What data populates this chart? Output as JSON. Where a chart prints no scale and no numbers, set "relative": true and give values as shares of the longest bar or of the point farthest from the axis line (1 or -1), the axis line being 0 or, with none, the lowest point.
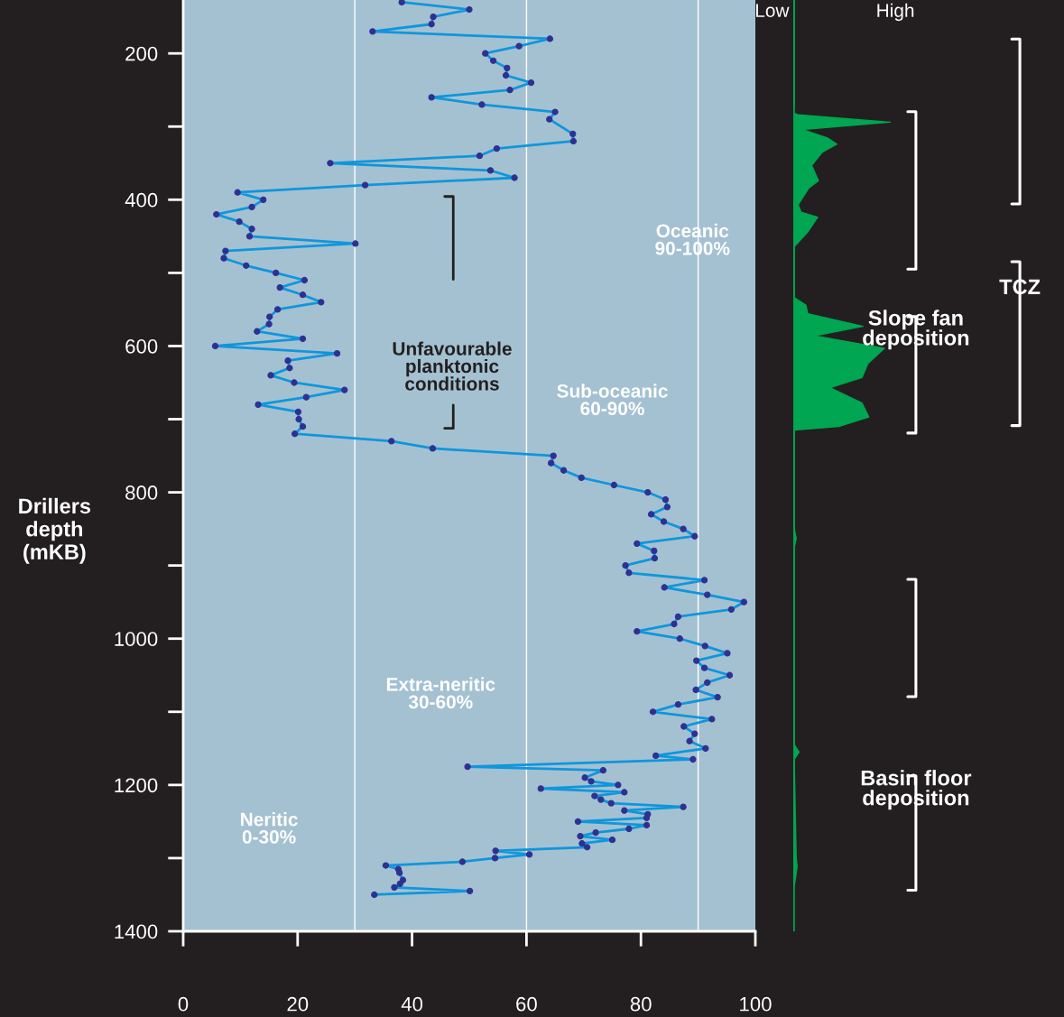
{
  "chart_data": [
    {
      "type": "line",
      "orientation": "horizontal",
      "ylabel": "Drillers\ndepth\n(mKB)",
      "marker": "circle",
      "line_style": "solid",
      "grid": false,
      "legend": false,
      "x": [
        130,
        140,
        150,
        160,
        170,
        180,
        190,
        200,
        210,
        220,
        230,
        240,
        250,
        260,
        270,
        280,
        290,
        310,
        320,
        330,
        340,
        350,
        360,
        370,
        380,
        390,
        400,
        410,
        420,
        430,
        440,
        450,
        460,
        470,
        480,
        490,
        500,
        510,
        520,
        530,
        540,
        550,
        560,
        570,
        580,
        590,
        600,
        610,
        620,
        630,
        640,
        650,
        660,
        670,
        680,
        690,
        700,
        710,
        720,
        730,
        740,
        750,
        760,
        770,
        780,
        790,
        800,
        810,
        820,
        830,
        840,
        850,
        860,
        870,
        880,
        890,
        900,
        910,
        920,
        930,
        940,
        950,
        960,
        970,
        980,
        990,
        1000,
        1010,
        1020,
        1030,
        1040,
        1050,
        1060,
        1070,
        1080,
        1090,
        1100,
        1110,
        1120,
        1130,
        1140,
        1150,
        1160,
        1165,
        1175,
        1180,
        1190,
        1195,
        1200,
        1205,
        1210,
        1215,
        1220,
        1225,
        1230,
        1235,
        1240,
        1245,
        1250,
        1255,
        1260,
        1265,
        1270,
        1275,
        1280,
        1285,
        1290,
        1295,
        1300,
        1305,
        1310,
        1315,
        1320,
        1330,
        1335,
        1340,
        1345,
        1350
      ],
      "series": [
        {
          "color": "#0f96dc",
          "values": [
            38.2,
            50.0,
            43.7,
            43.4,
            33.1,
            64.1,
            58.7,
            52.8,
            54.2,
            56.6,
            56.4,
            60.8,
            57.1,
            43.4,
            52.2,
            65.0,
            64.0,
            68.1,
            68.2,
            54.8,
            51.8,
            25.7,
            53.7,
            57.9,
            31.8,
            9.5,
            14.0,
            12.0,
            5.8,
            9.8,
            12.0,
            11.6,
            30.1,
            7.4,
            7.1,
            11.0,
            16.2,
            21.2,
            16.9,
            20.9,
            24.1,
            16.5,
            15.1,
            15.0,
            12.9,
            20.9,
            5.6,
            26.9,
            18.3,
            18.6,
            15.3,
            19.4,
            28.2,
            21.5,
            13.1,
            20.1,
            20.2,
            20.9,
            19.5,
            36.4,
            43.6,
            64.7,
            64.3,
            66.5,
            69.6,
            75.3,
            81.2,
            84.3,
            84.6,
            81.8,
            84.0,
            87.4,
            89.4,
            79.3,
            82.3,
            82.4,
            77.3,
            77.9,
            91.1,
            84.1,
            91.6,
            98.0,
            95.8,
            86.5,
            85.8,
            79.3,
            86.8,
            91.2,
            95.1,
            89.7,
            91.1,
            95.5,
            91.6,
            89.6,
            93.4,
            86.5,
            82.1,
            92.4,
            87.5,
            89.4,
            88.5,
            91.3,
            82.6,
            89.1,
            49.7,
            73.4,
            70.2,
            71.3,
            76.0,
            62.5,
            77.1,
            71.9,
            73.0,
            74.8,
            87.4,
            77.1,
            81.2,
            81.0,
            69.0,
            81.0,
            77.9,
            72.1,
            69.4,
            75.0,
            69.7,
            70.6,
            54.6,
            60.5,
            54.5,
            48.8,
            35.4,
            37.6,
            37.8,
            38.4,
            37.9,
            36.9,
            50.1,
            33.4
          ]
        }
      ],
      "xlim": [
        0,
        100
      ],
      "xticks": [
        0,
        20,
        40,
        60,
        80,
        100
      ],
      "ylim": [
        1400,
        127
      ],
      "yticks": [
        200,
        400,
        600,
        800,
        1000,
        1200,
        1400
      ],
      "ref_lines": [
        {
          "axis": "x",
          "value": 30,
          "color": "#ffffff"
        },
        {
          "axis": "x",
          "value": 60,
          "color": "#ffffff"
        },
        {
          "axis": "x",
          "value": 90,
          "color": "#ffffff"
        }
      ],
      "annotations": [
        "Neritic\n0-30%",
        "Extra-neritic\n30-60%",
        "Sub-oceanic\n60-90%",
        "Oceanic\n90-100%",
        "Unfavourable\nplanktonic\nconditions"
      ]
    },
    {
      "type": "area",
      "orientation": "horizontal",
      "relative": true,
      "tick_labels": false,
      "ylim": [
        1400,
        127
      ],
      "x": [
        127,
        270,
        281,
        284,
        294,
        304,
        316,
        324,
        335,
        353,
        374,
        384,
        407,
        417,
        424,
        444,
        464,
        534,
        544,
        556,
        573,
        586,
        603,
        624,
        643,
        657,
        678,
        697,
        710,
        715,
        850,
        863,
        876,
        1145,
        1155,
        1165,
        1300,
        1311,
        1330,
        1344
      ],
      "series": [
        {
          "color": "#00a651",
          "values": [
            0.01,
            0.01,
            0,
            0.05,
            1,
            0.09,
            0.36,
            0.45,
            0.3,
            0.19,
            0.26,
            0.16,
            0.05,
            0.08,
            0.25,
            0.15,
            0.01,
            0.01,
            0.13,
            0.15,
            0.72,
            0.22,
            0.94,
            0.77,
            0.71,
            0.38,
            0.71,
            0.78,
            0.47,
            0.01,
            0.01,
            0.03,
            0.01,
            0.01,
            0.06,
            0.01,
            0.03,
            0.04,
            0.02,
            0
          ]
        }
      ],
      "annotations": [
        "Low",
        "High",
        "Slope fan\ndeposition",
        "TCZ",
        "Basin floor\ndeposition"
      ]
    }
  ]
}
